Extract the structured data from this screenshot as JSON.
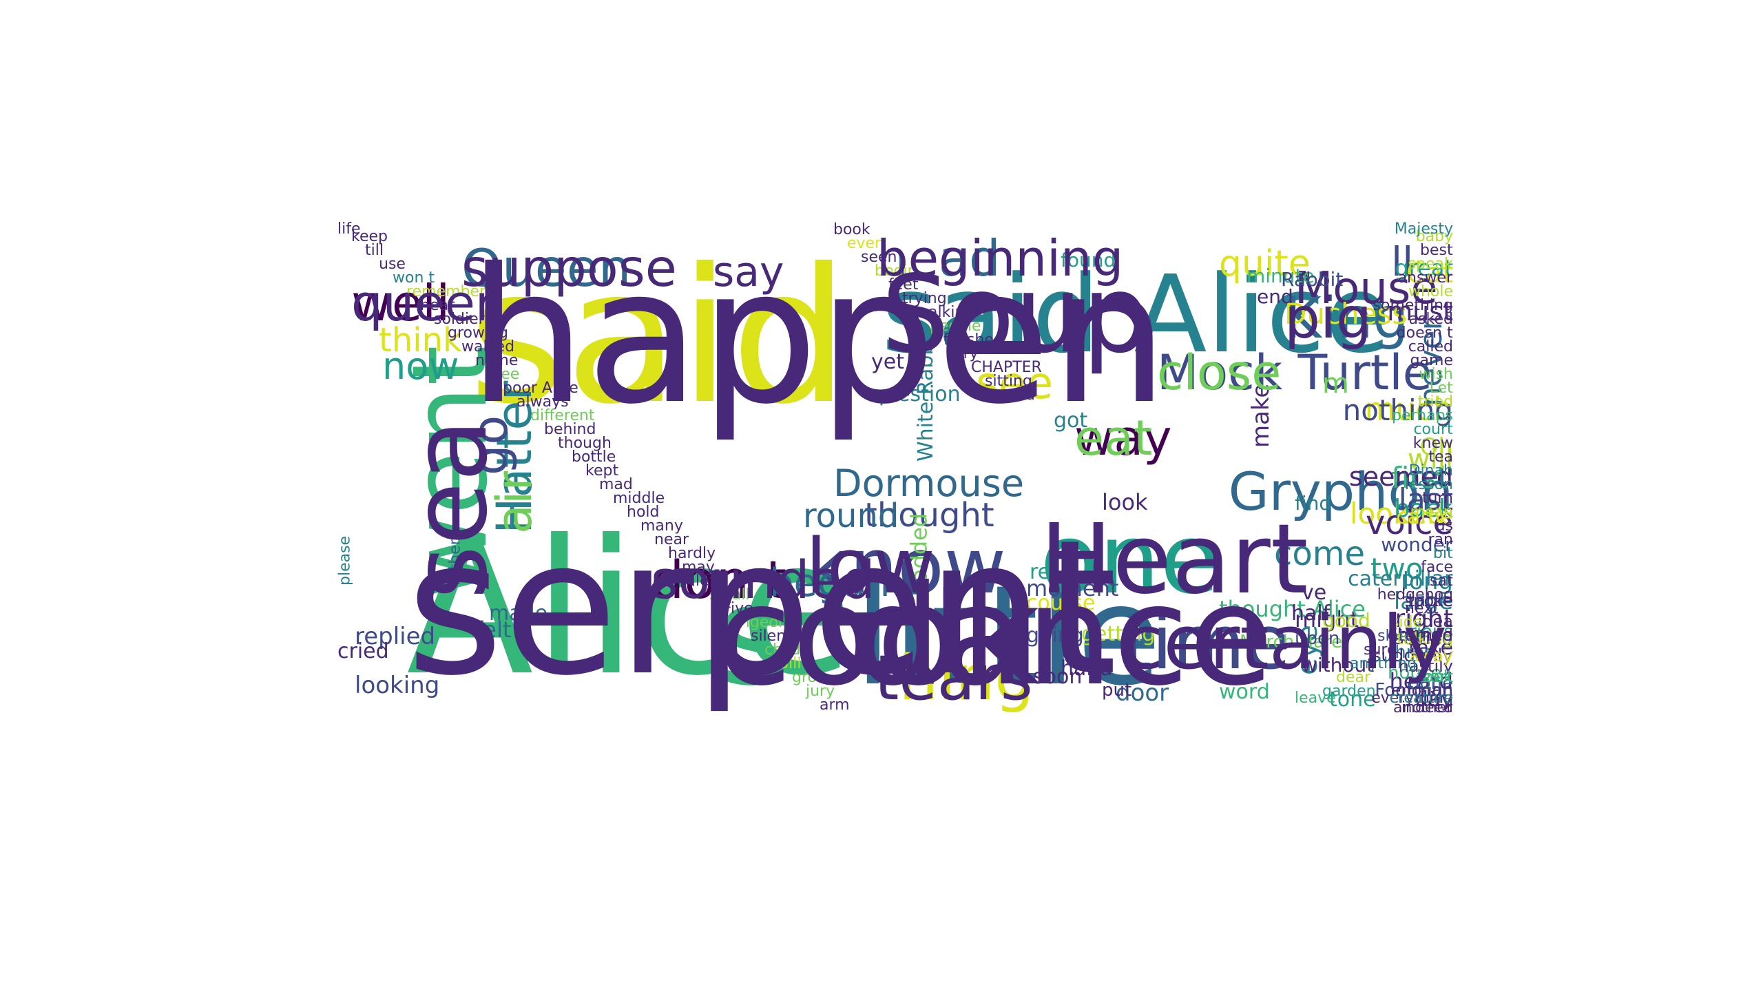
{
  "palette": {
    "c0": "#440154",
    "c1": "#482878",
    "c2": "#3e4a89",
    "c3": "#31688e",
    "c4": "#26828e",
    "c5": "#1f9e89",
    "c6": "#35b779",
    "c7": "#6ece58",
    "c8": "#b5de2b",
    "c9": "#dce319"
  },
  "words": [
    {
      "text": "said",
      "color": "c9"
    },
    {
      "text": "Alice",
      "color": "c6"
    },
    {
      "text": "said Alice",
      "color": "c4"
    },
    {
      "text": "s",
      "color": "c6"
    },
    {
      "text": "little",
      "color": "c3"
    },
    {
      "text": "one",
      "color": "c5"
    },
    {
      "text": "went",
      "color": "c6"
    },
    {
      "text": "know",
      "color": "c2"
    },
    {
      "text": "time",
      "color": "c2"
    },
    {
      "text": "head",
      "color": "c3"
    },
    {
      "text": "Queen",
      "color": "c3"
    },
    {
      "text": "well",
      "color": "c0"
    },
    {
      "text": "thing",
      "color": "c9"
    },
    {
      "text": "don t",
      "color": "c0"
    },
    {
      "text": "Mock Turtle",
      "color": "c2"
    },
    {
      "text": "way",
      "color": "c0"
    },
    {
      "text": "King",
      "color": "c3"
    },
    {
      "text": "Hatter",
      "color": "c4"
    },
    {
      "text": "began",
      "color": "c3"
    },
    {
      "text": "Gryphon",
      "color": "c3"
    },
    {
      "text": "see",
      "color": "c9"
    },
    {
      "text": "say",
      "color": "c1"
    },
    {
      "text": "quite",
      "color": "c9"
    },
    {
      "text": "Mouse",
      "color": "c1"
    },
    {
      "text": "ll",
      "color": "c2"
    },
    {
      "text": "go",
      "color": "c2"
    },
    {
      "text": "now",
      "color": "c5"
    },
    {
      "text": "think",
      "color": "c9"
    },
    {
      "text": "come",
      "color": "c4"
    },
    {
      "text": "Dormouse",
      "color": "c3"
    },
    {
      "text": "thought",
      "color": "c2"
    },
    {
      "text": "much",
      "color": "c9"
    },
    {
      "text": "never",
      "color": "c3"
    },
    {
      "text": "looked",
      "color": "c9"
    },
    {
      "text": "first",
      "color": "c6"
    },
    {
      "text": "round",
      "color": "c3"
    },
    {
      "text": "voice",
      "color": "c1"
    },
    {
      "text": "Duchess",
      "color": "c9"
    },
    {
      "text": "Cat",
      "color": "c9"
    },
    {
      "text": "great",
      "color": "c5"
    },
    {
      "text": "make",
      "color": "c1"
    },
    {
      "text": "m",
      "color": "c7"
    },
    {
      "text": "must",
      "color": "c1"
    },
    {
      "text": "two",
      "color": "c5"
    },
    {
      "text": "nothing",
      "color": "c2"
    },
    {
      "text": "tell",
      "color": "c3"
    },
    {
      "text": "back",
      "color": "c5"
    },
    {
      "text": "last",
      "color": "c2"
    },
    {
      "text": "got",
      "color": "c4"
    },
    {
      "text": "seemed",
      "color": "c1"
    },
    {
      "text": "look",
      "color": "c1"
    },
    {
      "text": "will",
      "color": "c8"
    },
    {
      "text": "came",
      "color": "c9"
    },
    {
      "text": "Oh",
      "color": "c8"
    },
    {
      "text": "long",
      "color": "c4"
    },
    {
      "text": "large",
      "color": "c4"
    },
    {
      "text": "right",
      "color": "c1"
    },
    {
      "text": "heard",
      "color": "c1"
    },
    {
      "text": "replied",
      "color": "c2"
    },
    {
      "text": "looking",
      "color": "c2"
    },
    {
      "text": "door",
      "color": "c3"
    },
    {
      "text": "eye",
      "color": "c4"
    },
    {
      "text": "tone",
      "color": "c5"
    },
    {
      "text": "day",
      "color": "c1"
    },
    {
      "text": "word",
      "color": "c6"
    },
    {
      "text": "found",
      "color": "c5"
    },
    {
      "text": "minute",
      "color": "c6"
    },
    {
      "text": "Rabbit",
      "color": "c2"
    },
    {
      "text": "without",
      "color": "c1"
    },
    {
      "text": "ve",
      "color": "c1"
    },
    {
      "text": "moment",
      "color": "c2"
    },
    {
      "text": "course",
      "color": "c9"
    },
    {
      "text": "going",
      "color": "c2"
    },
    {
      "text": "getting",
      "color": "c8"
    },
    {
      "text": "hand",
      "color": "c1"
    },
    {
      "text": "soon",
      "color": "c1"
    },
    {
      "text": "take",
      "color": "c1"
    },
    {
      "text": "might",
      "color": "c1"
    },
    {
      "text": "made",
      "color": "c3"
    },
    {
      "text": "felt",
      "color": "c3"
    },
    {
      "text": "rather",
      "color": "c3"
    },
    {
      "text": "please",
      "color": "c4"
    },
    {
      "text": "added",
      "color": "c7"
    },
    {
      "text": "yet",
      "color": "c1"
    },
    {
      "text": "question",
      "color": "c4"
    },
    {
      "text": "White Rabbit",
      "color": "c4"
    },
    {
      "text": "thought Alice",
      "color": "c6"
    },
    {
      "text": "March Hare",
      "color": "c7"
    },
    {
      "text": "caterpillar",
      "color": "c4"
    },
    {
      "text": "put",
      "color": "c1"
    },
    {
      "text": "re",
      "color": "c5"
    },
    {
      "text": "cried",
      "color": "c1"
    },
    {
      "text": "wonder",
      "color": "c2"
    },
    {
      "text": "find",
      "color": "c4"
    },
    {
      "text": "end",
      "color": "c1"
    },
    {
      "text": "half",
      "color": "c1"
    },
    {
      "text": "upon",
      "color": "c2"
    },
    {
      "text": "three",
      "color": "c4"
    },
    {
      "text": "done",
      "color": "c3"
    },
    {
      "text": "good",
      "color": "c8"
    },
    {
      "text": "house",
      "color": "c6"
    },
    {
      "text": "suddenly",
      "color": "c1"
    },
    {
      "text": "Footman",
      "color": "c2"
    },
    {
      "text": "curious",
      "color": "c5"
    },
    {
      "text": "saying",
      "color": "c1"
    },
    {
      "text": "change",
      "color": "c1"
    },
    {
      "text": "table",
      "color": "c2"
    },
    {
      "text": "spoke",
      "color": "c1"
    },
    {
      "text": "idea",
      "color": "c1"
    },
    {
      "text": "talking",
      "color": "c8"
    },
    {
      "text": "hastily",
      "color": "c1"
    },
    {
      "text": "took",
      "color": "c6"
    },
    {
      "text": "sort",
      "color": "c6"
    },
    {
      "text": "enough",
      "color": "c1"
    },
    {
      "text": "turned",
      "color": "c1"
    },
    {
      "text": "away",
      "color": "c9"
    },
    {
      "text": "everything",
      "color": "c1"
    },
    {
      "text": "indeed",
      "color": "c1"
    },
    {
      "text": "another",
      "color": "c1"
    },
    {
      "text": "creature",
      "color": "c4"
    },
    {
      "text": "leave",
      "color": "c6"
    },
    {
      "text": "garden",
      "color": "c5"
    },
    {
      "text": "dear",
      "color": "c8"
    },
    {
      "text": "anything",
      "color": "c4"
    },
    {
      "text": "sure",
      "color": "c1"
    },
    {
      "text": "slate",
      "color": "c2"
    },
    {
      "text": "side",
      "color": "c8"
    },
    {
      "text": "next",
      "color": "c1"
    },
    {
      "text": "hedgehog",
      "color": "c1"
    },
    {
      "text": "sat",
      "color": "c1"
    },
    {
      "text": "face",
      "color": "c1"
    },
    {
      "text": "bit",
      "color": "c4"
    },
    {
      "text": "ran",
      "color": "c1"
    },
    {
      "text": "us",
      "color": "c1"
    },
    {
      "text": "mean",
      "color": "c8"
    },
    {
      "text": "turn",
      "color": "c1"
    },
    {
      "text": "lesson",
      "color": "c4"
    },
    {
      "text": "Dinah",
      "color": "c4"
    },
    {
      "text": "tea",
      "color": "c1"
    },
    {
      "text": "knew",
      "color": "c1"
    },
    {
      "text": "court",
      "color": "c5"
    },
    {
      "text": "perhaps",
      "color": "c6"
    },
    {
      "text": "tried",
      "color": "c8"
    },
    {
      "text": "Let",
      "color": "c7"
    },
    {
      "text": "wish",
      "color": "c7"
    },
    {
      "text": "game",
      "color": "c1"
    },
    {
      "text": "called",
      "color": "c1"
    },
    {
      "text": "doesn t",
      "color": "c1"
    },
    {
      "text": "asked",
      "color": "c1"
    },
    {
      "text": "something",
      "color": "c1"
    },
    {
      "text": "whole",
      "color": "c8"
    },
    {
      "text": "answer",
      "color": "c1"
    },
    {
      "text": "speak",
      "color": "c8"
    },
    {
      "text": "best",
      "color": "c1"
    },
    {
      "text": "baby",
      "color": "c8"
    },
    {
      "text": "Majesty",
      "color": "c4"
    },
    {
      "text": "life",
      "color": "c1"
    },
    {
      "text": "keep",
      "color": "c1"
    },
    {
      "text": "till",
      "color": "c1"
    },
    {
      "text": "use",
      "color": "c1"
    },
    {
      "text": "won t",
      "color": "c4"
    },
    {
      "text": "remember",
      "color": "c8"
    },
    {
      "text": "hear",
      "color": "c1"
    },
    {
      "text": "soldier",
      "color": "c1"
    },
    {
      "text": "growing",
      "color": "c1"
    },
    {
      "text": "walked",
      "color": "c1"
    },
    {
      "text": "name",
      "color": "c1"
    },
    {
      "text": "tree",
      "color": "c7"
    },
    {
      "text": "poor Alice",
      "color": "c1"
    },
    {
      "text": "always",
      "color": "c1"
    },
    {
      "text": "different",
      "color": "c7"
    },
    {
      "text": "behind",
      "color": "c1"
    },
    {
      "text": "though",
      "color": "c1"
    },
    {
      "text": "bottle",
      "color": "c1"
    },
    {
      "text": "kept",
      "color": "c1"
    },
    {
      "text": "mad",
      "color": "c1"
    },
    {
      "text": "middle",
      "color": "c1"
    },
    {
      "text": "hold",
      "color": "c1"
    },
    {
      "text": "many",
      "color": "c1"
    },
    {
      "text": "near",
      "color": "c1"
    },
    {
      "text": "hardly",
      "color": "c1"
    },
    {
      "text": "may",
      "color": "c1"
    },
    {
      "text": "left",
      "color": "c1"
    },
    {
      "text": "small",
      "color": "c7"
    },
    {
      "text": "Five",
      "color": "c1"
    },
    {
      "text": "Pigeon",
      "color": "c7"
    },
    {
      "text": "silence",
      "color": "c1"
    },
    {
      "text": "child",
      "color": "c7"
    },
    {
      "text": "Bill",
      "color": "c8"
    },
    {
      "text": "grow",
      "color": "c7"
    },
    {
      "text": "jury",
      "color": "c7"
    },
    {
      "text": "arm",
      "color": "c1"
    },
    {
      "text": "book",
      "color": "c1"
    },
    {
      "text": "even",
      "color": "c9"
    },
    {
      "text": "seen",
      "color": "c1"
    },
    {
      "text": "begin",
      "color": "c8"
    },
    {
      "text": "feet",
      "color": "c1"
    },
    {
      "text": "trying",
      "color": "c1"
    },
    {
      "text": "walking",
      "color": "c1"
    },
    {
      "text": "people",
      "color": "c7"
    },
    {
      "text": "finished",
      "color": "c1"
    },
    {
      "text": "try",
      "color": "c1"
    },
    {
      "text": "CHAPTER",
      "color": "c1"
    },
    {
      "text": "sitting",
      "color": "c1"
    },
    {
      "text": "used",
      "color": "c1"
    },
    {
      "text": "happen",
      "color": "c1"
    },
    {
      "text": "serpent",
      "color": "c1"
    },
    {
      "text": "Soup",
      "color": "c1"
    },
    {
      "text": "cook",
      "color": "c1"
    },
    {
      "text": "dance",
      "color": "c1"
    },
    {
      "text": "Heart",
      "color": "c1"
    },
    {
      "text": "sea",
      "color": "c1"
    },
    {
      "text": "low",
      "color": "c1"
    },
    {
      "text": "certainly",
      "color": "c1"
    },
    {
      "text": "beginning",
      "color": "c1"
    },
    {
      "text": "suppose",
      "color": "c1"
    },
    {
      "text": "queer",
      "color": "c1"
    },
    {
      "text": "tears",
      "color": "c1"
    },
    {
      "text": "sounded",
      "color": "c1"
    },
    {
      "text": "close",
      "color": "c7"
    },
    {
      "text": "eat",
      "color": "c7"
    },
    {
      "text": "pig",
      "color": "c1"
    },
    {
      "text": "air",
      "color": "c7"
    }
  ]
}
